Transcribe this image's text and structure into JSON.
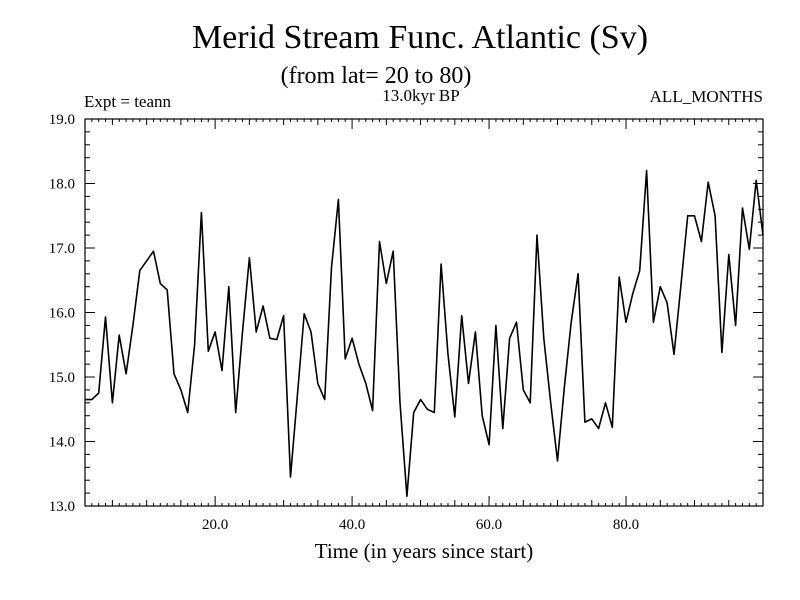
{
  "chart_data": {
    "type": "line",
    "title": "Merid Stream Func. Atlantic (Sv)",
    "subtitle": "(from lat= 20 to 80)",
    "annotation_left": "Expt = teann",
    "annotation_center": "13.0kyr BP",
    "annotation_right": "ALL_MONTHS",
    "xlabel": "Time (in years since start)",
    "ylabel": "",
    "xlim": [
      1,
      100
    ],
    "ylim": [
      13.0,
      19.0
    ],
    "x_ticks": [
      20,
      40,
      60,
      80
    ],
    "x_tick_labels": [
      "20.0",
      "40.0",
      "60.0",
      "80.0"
    ],
    "y_ticks": [
      13,
      14,
      15,
      16,
      17,
      18,
      19
    ],
    "y_tick_labels": [
      "13.0",
      "14.0",
      "15.0",
      "16.0",
      "17.0",
      "18.0",
      "19.0"
    ],
    "series": [
      {
        "name": "Merid Stream Func. Atlantic",
        "x": [
          1,
          2,
          3,
          4,
          5,
          6,
          7,
          8,
          9,
          10,
          11,
          12,
          13,
          14,
          15,
          16,
          17,
          18,
          19,
          20,
          21,
          22,
          23,
          24,
          25,
          26,
          27,
          28,
          29,
          30,
          31,
          32,
          33,
          34,
          35,
          36,
          37,
          38,
          39,
          40,
          41,
          42,
          43,
          44,
          45,
          46,
          47,
          48,
          49,
          50,
          51,
          52,
          53,
          54,
          55,
          56,
          57,
          58,
          59,
          60,
          61,
          62,
          63,
          64,
          65,
          66,
          67,
          68,
          69,
          70,
          71,
          72,
          73,
          74,
          75,
          76,
          77,
          78,
          79,
          80,
          81,
          82,
          83,
          84,
          85,
          86,
          87,
          88,
          89,
          90,
          91,
          92,
          93,
          94,
          95,
          96,
          97,
          98,
          99,
          100
        ],
        "values": [
          14.65,
          14.65,
          14.75,
          15.93,
          14.6,
          15.65,
          15.05,
          15.8,
          16.65,
          16.8,
          16.95,
          16.45,
          16.35,
          15.05,
          14.8,
          14.45,
          15.5,
          17.55,
          15.4,
          15.7,
          15.1,
          16.4,
          14.45,
          15.7,
          16.85,
          15.7,
          16.1,
          15.6,
          15.58,
          15.95,
          13.45,
          14.7,
          15.98,
          15.7,
          14.9,
          14.65,
          16.7,
          17.75,
          15.28,
          15.6,
          15.2,
          14.9,
          14.48,
          17.1,
          16.45,
          16.95,
          14.6,
          13.15,
          14.45,
          14.65,
          14.5,
          14.45,
          16.75,
          15.35,
          14.38,
          15.95,
          14.9,
          15.7,
          14.4,
          13.95,
          15.8,
          14.2,
          15.6,
          15.85,
          14.8,
          14.6,
          17.2,
          15.6,
          14.6,
          13.7,
          14.85,
          15.85,
          16.6,
          14.3,
          14.35,
          14.2,
          14.6,
          14.22,
          16.55,
          15.85,
          16.3,
          16.65,
          18.2,
          15.85,
          16.4,
          16.15,
          15.35,
          16.4,
          17.5,
          17.5,
          17.1,
          18.02,
          17.5,
          15.38,
          16.9,
          15.8,
          17.62,
          16.98,
          18.05,
          17.2
        ]
      }
    ]
  }
}
